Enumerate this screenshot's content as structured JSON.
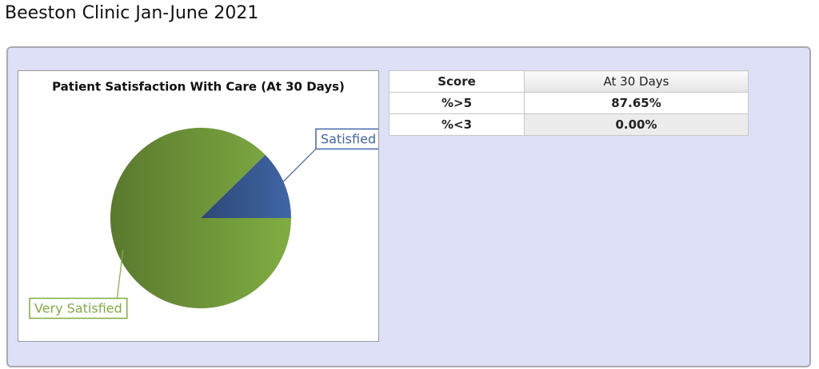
{
  "header": {
    "title": "Beeston Clinic Jan-June 2021"
  },
  "chart_data": {
    "type": "pie",
    "title": "Patient Satisfaction With Care (At 30 Days)",
    "categories": [
      "Satisfied",
      "Very Satisfied"
    ],
    "values": [
      12.35,
      87.65
    ],
    "colors": [
      "#3f66a6",
      "#80ad42"
    ]
  },
  "table": {
    "header": [
      "Score",
      "At 30 Days"
    ],
    "rows": [
      [
        "%>5",
        "87.65%"
      ],
      [
        "%<3",
        "0.00%"
      ]
    ]
  }
}
